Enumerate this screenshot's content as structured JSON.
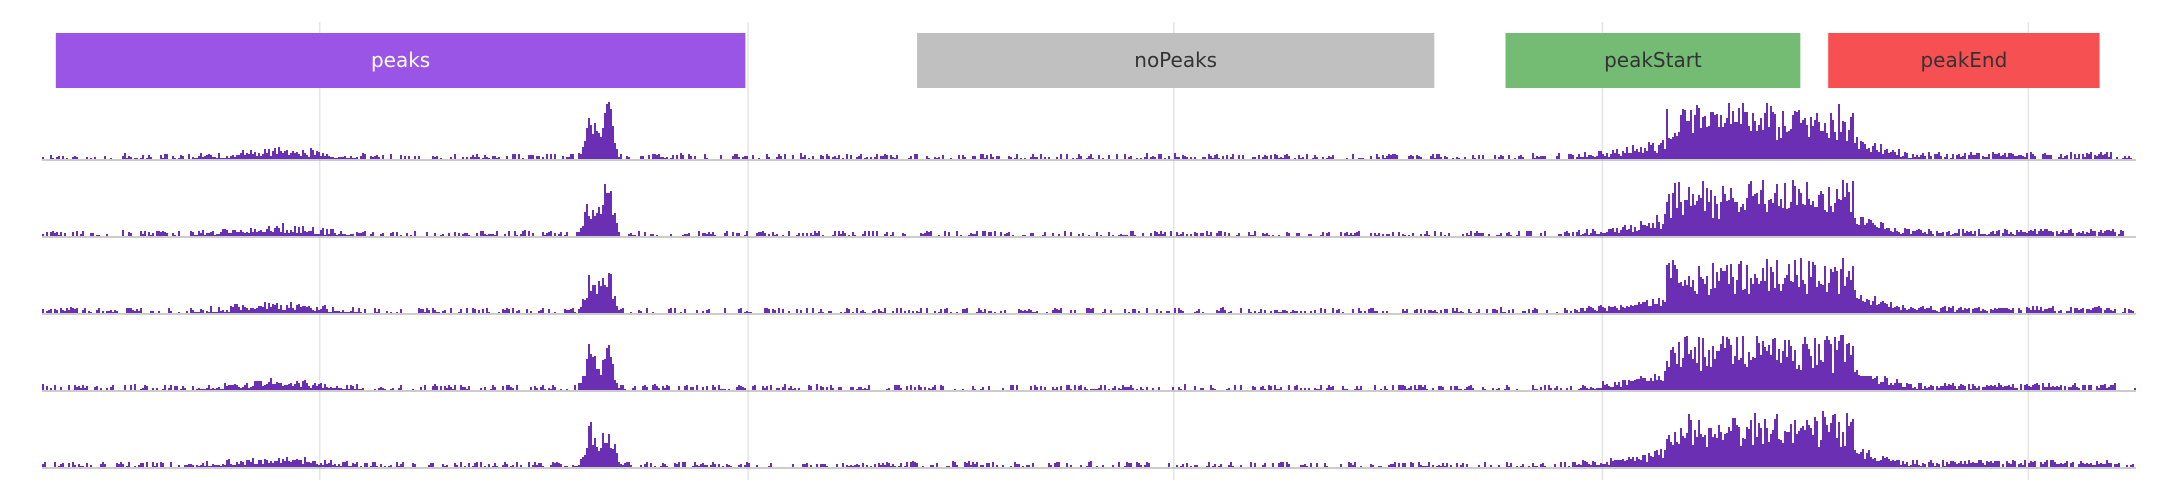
{
  "annotation_track": {
    "regions": [
      {
        "label": "peaks",
        "start": 0.0066,
        "end": 0.3359,
        "color": "#9b55e6",
        "text_color": "#ffffff"
      },
      {
        "label": "noPeaks",
        "start": 0.4179,
        "end": 0.6649,
        "color": "#c0c0c0",
        "text_color": "#333333"
      },
      {
        "label": "peakStart",
        "start": 0.6989,
        "end": 0.8397,
        "color": "#74bb73",
        "text_color": "#333333"
      },
      {
        "label": "peakEnd",
        "start": 0.853,
        "end": 0.9826,
        "color": "#f65053",
        "text_color": "#333333"
      }
    ]
  },
  "vertical_grid": [
    0.1326,
    0.3372,
    0.5405,
    0.7452,
    0.9486
  ],
  "signal_tracks": [
    {
      "name": "",
      "seed": 11,
      "color": "#6a2fb3"
    },
    {
      "name": "",
      "seed": 23,
      "color": "#6a2fb3"
    },
    {
      "name": "",
      "seed": 37,
      "color": "#6a2fb3"
    },
    {
      "name": "",
      "seed": 41,
      "color": "#6a2fb3"
    },
    {
      "name": "",
      "seed": 59,
      "color": "#6a2fb3"
    }
  ],
  "signal_profile": {
    "background": 0.06,
    "features": [
      {
        "center": 0.112,
        "width": 0.02,
        "height": 0.12
      },
      {
        "center": 0.262,
        "width": 0.003,
        "height": 0.7
      },
      {
        "center": 0.27,
        "width": 0.0025,
        "height": 0.9
      },
      {
        "center": 0.81,
        "width": 0.035,
        "height": 0.55
      },
      {
        "center": 0.855,
        "width": 0.02,
        "height": 0.25
      }
    ]
  }
}
